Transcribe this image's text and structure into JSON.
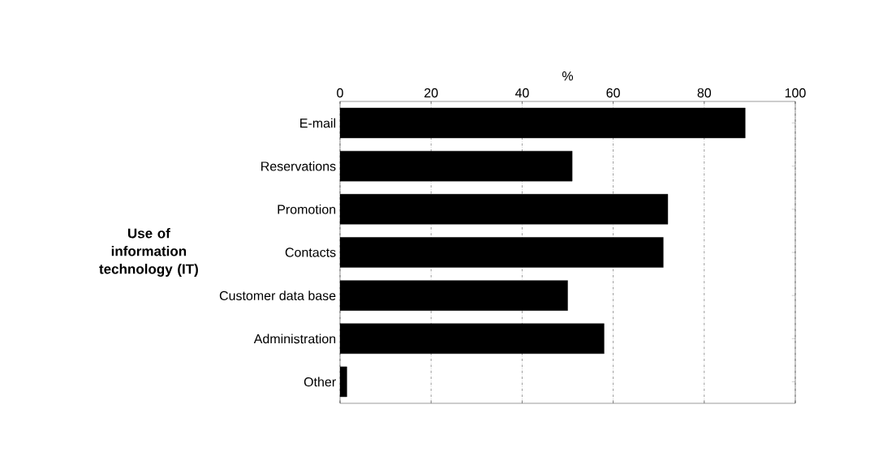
{
  "chart_data": {
    "type": "bar",
    "orientation": "horizontal",
    "xlabel": "%",
    "ylabel": "Use of information technology (IT)",
    "categories": [
      "E-mail",
      "Reservations",
      "Promotion",
      "Contacts",
      "Customer data base",
      "Administration",
      "Other"
    ],
    "values": [
      89,
      51,
      72,
      71,
      50,
      58,
      1.5
    ],
    "color": "#000000",
    "xlim": [
      0,
      100
    ],
    "xticks": [
      0,
      20,
      40,
      60,
      80,
      100
    ],
    "grid": "x"
  }
}
